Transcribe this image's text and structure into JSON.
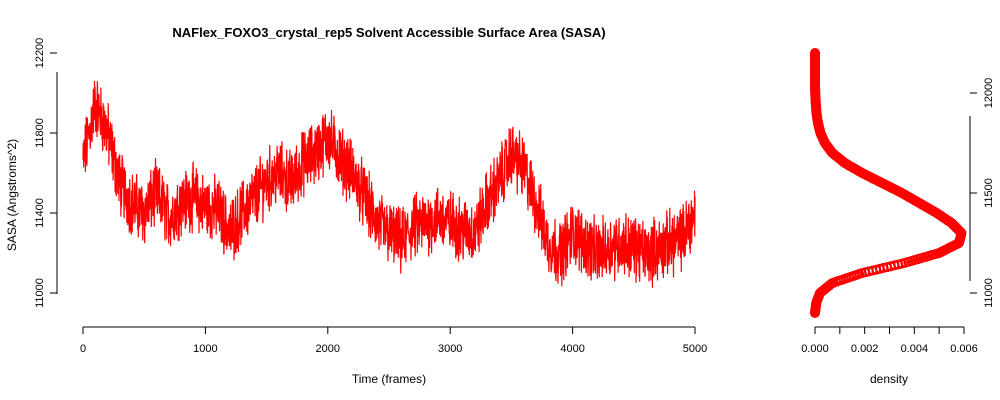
{
  "chart_data": [
    {
      "type": "line",
      "title": "NAFlex_FOXO3_crystal_rep5 Solvent Accessible Surface Area (SASA)",
      "xlabel": "Time (frames)",
      "ylabel": "SASA (Angstroms^2)",
      "xlim": [
        0,
        5000
      ],
      "ylim": [
        10880,
        12220
      ],
      "x_ticks": [
        "0",
        "1000",
        "2000",
        "3000",
        "4000",
        "5000"
      ],
      "y_ticks": [
        "11000",
        "11400",
        "11800",
        "12200"
      ],
      "color": "#ff0000",
      "grid": false,
      "series": [
        {
          "x": [
            0,
            100,
            200,
            300,
            400,
            500,
            600,
            700,
            800,
            900,
            1000,
            1100,
            1200,
            1300,
            1400,
            1500,
            1600,
            1700,
            1800,
            1900,
            2000,
            2100,
            2200,
            2300,
            2400,
            2500,
            2600,
            2700,
            2800,
            2900,
            3000,
            3100,
            3200,
            3300,
            3400,
            3500,
            3600,
            3700,
            3800,
            3900,
            4000,
            4100,
            4200,
            4300,
            4400,
            4500,
            4600,
            4700,
            4800,
            4900,
            5000
          ],
          "y": [
            11650,
            11950,
            11800,
            11550,
            11450,
            11400,
            11500,
            11380,
            11450,
            11480,
            11430,
            11420,
            11300,
            11400,
            11480,
            11560,
            11600,
            11550,
            11650,
            11700,
            11780,
            11680,
            11600,
            11480,
            11350,
            11300,
            11250,
            11330,
            11350,
            11380,
            11350,
            11320,
            11300,
            11450,
            11560,
            11700,
            11620,
            11450,
            11250,
            11200,
            11300,
            11250,
            11200,
            11230,
            11250,
            11230,
            11200,
            11220,
            11250,
            11280,
            11400
          ]
        }
      ]
    },
    {
      "type": "scatter",
      "xlabel": "density",
      "ylabel": "",
      "xlim": [
        0,
        0.006
      ],
      "ylim": [
        10880,
        12220
      ],
      "x_ticks": [
        "0.000",
        "0.002",
        "0.004",
        "0.006"
      ],
      "y_ticks": [
        "11000",
        "11500",
        "12000"
      ],
      "color": "#ff0000",
      "grid": false,
      "density_curve": {
        "y": [
          10900,
          10950,
          11000,
          11050,
          11100,
          11150,
          11200,
          11250,
          11300,
          11350,
          11400,
          11450,
          11500,
          11550,
          11600,
          11650,
          11700,
          11750,
          11800,
          11850,
          11900,
          11950,
          12000,
          12050,
          12100,
          12150,
          12200
        ],
        "density": [
          0.0,
          5e-05,
          0.0002,
          0.0007,
          0.0019,
          0.0036,
          0.005,
          0.0058,
          0.0059,
          0.0055,
          0.0049,
          0.0042,
          0.0035,
          0.0027,
          0.0019,
          0.0012,
          0.0007,
          0.0004,
          0.00022,
          0.00012,
          6e-05,
          3e-05,
          1e-05,
          0.0,
          0.0,
          0.0,
          0.0
        ]
      }
    }
  ]
}
